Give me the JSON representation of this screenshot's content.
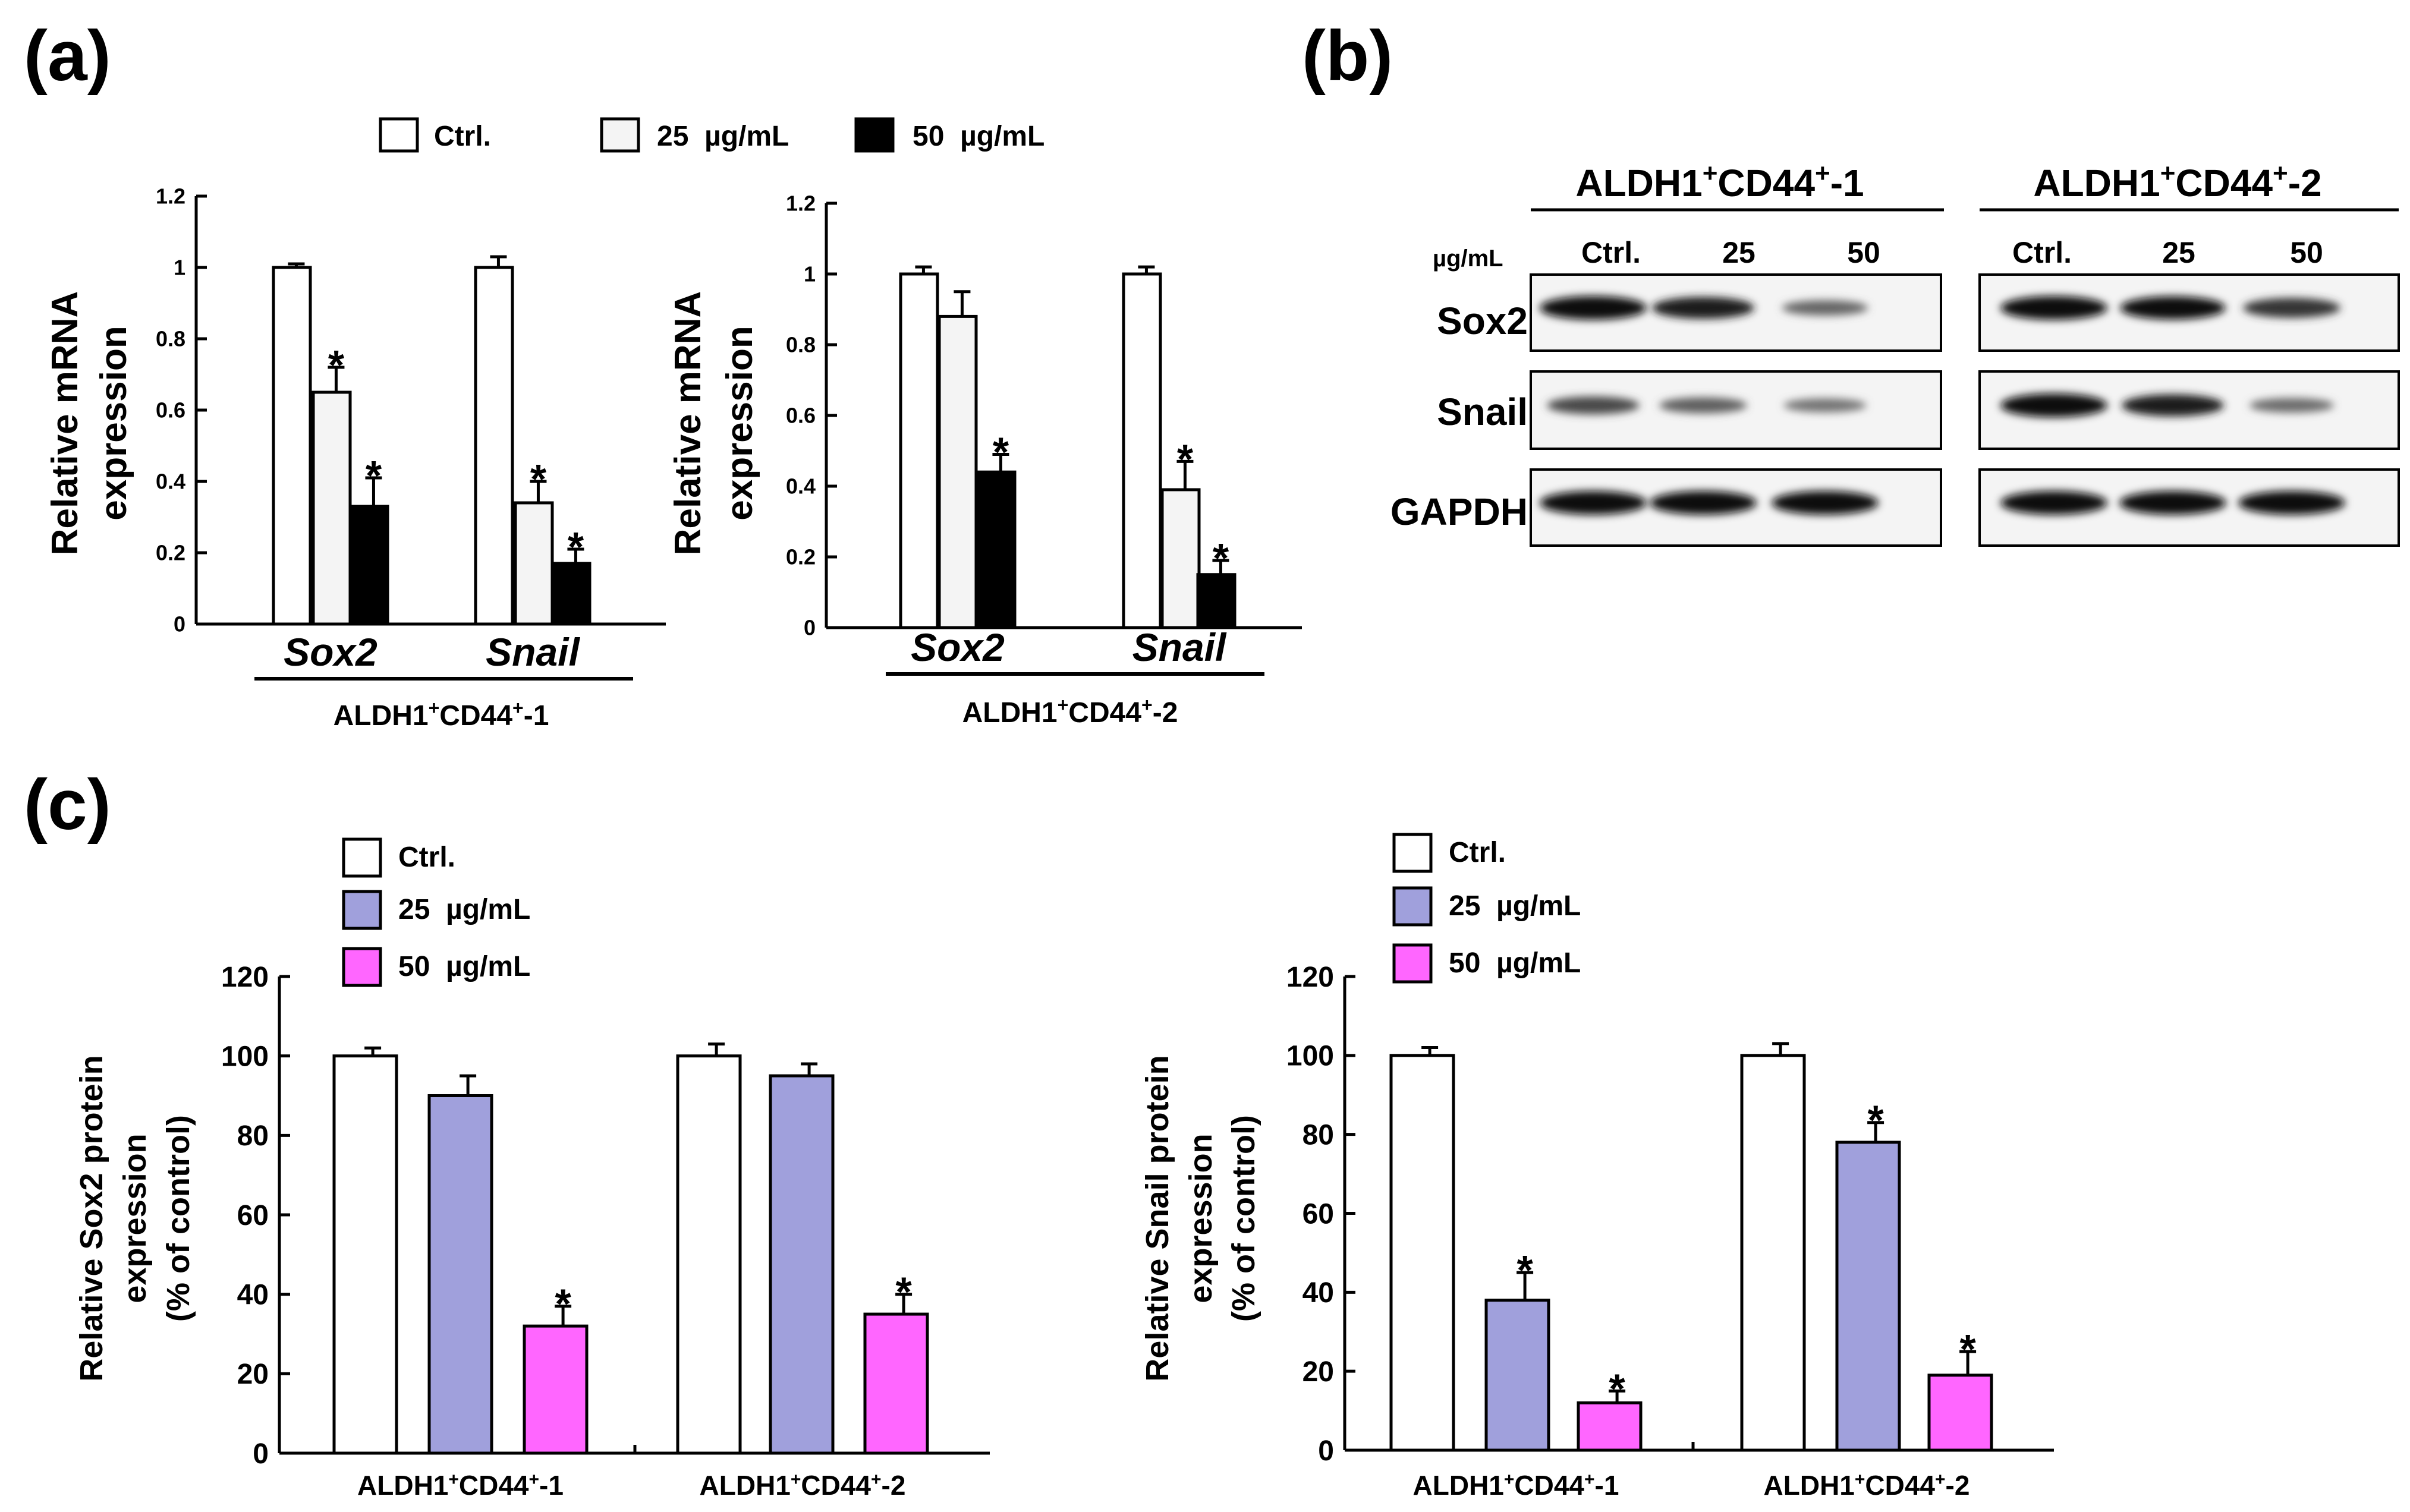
{
  "panel_labels": [
    "(a)",
    "(b)",
    "(c)"
  ],
  "colors": {
    "ctrl": "#ffffff",
    "mrna_25": "#f4f4f4",
    "mrna_50": "#000000",
    "protein_25": "#a0a0dc",
    "protein_50": "#ff66ff",
    "stroke": "#000000"
  },
  "panel_a": {
    "legend": [
      "Ctrl.",
      "25  µg/mL",
      "50  µg/mL"
    ],
    "ylabel_line1": "Relative mRNA",
    "ylabel_line2": "expression",
    "yticks": [
      "0",
      "0.2",
      "0.4",
      "0.6",
      "0.8",
      "1",
      "1.2"
    ]
  },
  "panel_b": {
    "groups": [
      "ALDH1+CD44+-1",
      "ALDH1+CD44+-2"
    ],
    "unit_label": "µg/mL",
    "lane_labels": [
      "Ctrl.",
      "25",
      "50"
    ],
    "row_labels": [
      "Sox2",
      "Snail",
      "GAPDH"
    ],
    "band_intensities": {
      "ALDH1+CD44+-1": {
        "Sox2": [
          1.0,
          0.85,
          0.35
        ],
        "Snail": [
          0.55,
          0.4,
          0.25
        ],
        "GAPDH": [
          1.0,
          1.0,
          1.0
        ]
      },
      "ALDH1+CD44+-2": {
        "Sox2": [
          1.0,
          0.95,
          0.7
        ],
        "Snail": [
          1.0,
          0.85,
          0.3
        ],
        "GAPDH": [
          1.0,
          1.0,
          1.0
        ]
      }
    }
  },
  "panel_c": {
    "legend": [
      "Ctrl.",
      "25  µg/mL",
      "50  µg/mL"
    ],
    "left_ylabel": [
      "Relative Sox2 protein",
      "expression",
      "(% of control)"
    ],
    "right_ylabel": [
      "Relative Snail protein",
      "expression",
      "(% of control)"
    ],
    "yticks": [
      "0",
      "20",
      "40",
      "60",
      "80",
      "100",
      "120"
    ]
  },
  "chart_data": [
    {
      "id": "a1",
      "type": "bar",
      "categories": [
        "Sox2",
        "Snail"
      ],
      "group_label": "ALDH1+CD44+-1",
      "ylabel": "Relative mRNA expression",
      "ylim": [
        0,
        1.2
      ],
      "series": [
        {
          "name": "Ctrl.",
          "values": [
            1.0,
            1.0
          ],
          "errors": [
            0.01,
            0.03
          ],
          "significant": [
            false,
            false
          ]
        },
        {
          "name": "25  µg/mL",
          "values": [
            0.65,
            0.34
          ],
          "errors": [
            0.07,
            0.06
          ],
          "significant": [
            true,
            true
          ]
        },
        {
          "name": "50  µg/mL",
          "values": [
            0.33,
            0.17
          ],
          "errors": [
            0.08,
            0.04
          ],
          "significant": [
            true,
            true
          ]
        }
      ]
    },
    {
      "id": "a2",
      "type": "bar",
      "categories": [
        "Sox2",
        "Snail"
      ],
      "group_label": "ALDH1+CD44+-2",
      "ylabel": "Relative mRNA expression",
      "ylim": [
        0,
        1.2
      ],
      "series": [
        {
          "name": "Ctrl.",
          "values": [
            1.0,
            1.0
          ],
          "errors": [
            0.02,
            0.02
          ],
          "significant": [
            false,
            false
          ]
        },
        {
          "name": "25  µg/mL",
          "values": [
            0.88,
            0.39
          ],
          "errors": [
            0.07,
            0.08
          ],
          "significant": [
            false,
            true
          ]
        },
        {
          "name": "50  µg/mL",
          "values": [
            0.44,
            0.15
          ],
          "errors": [
            0.05,
            0.04
          ],
          "significant": [
            true,
            true
          ]
        }
      ]
    },
    {
      "id": "c1",
      "type": "bar",
      "categories": [
        "ALDH1+CD44+-1",
        "ALDH1+CD44+-2"
      ],
      "ylabel": "Relative Sox2 protein expression (% of control)",
      "ylim": [
        0,
        120
      ],
      "series": [
        {
          "name": "Ctrl.",
          "values": [
            100,
            100
          ],
          "errors": [
            2,
            3
          ],
          "significant": [
            false,
            false
          ]
        },
        {
          "name": "25  µg/mL",
          "values": [
            90,
            95
          ],
          "errors": [
            5,
            3
          ],
          "significant": [
            false,
            false
          ]
        },
        {
          "name": "50  µg/mL",
          "values": [
            32,
            35
          ],
          "errors": [
            5,
            5
          ],
          "significant": [
            true,
            true
          ]
        }
      ]
    },
    {
      "id": "c2",
      "type": "bar",
      "categories": [
        "ALDH1+CD44+-1",
        "ALDH1+CD44+-2"
      ],
      "ylabel": "Relative Snail protein expression (% of control)",
      "ylim": [
        0,
        120
      ],
      "series": [
        {
          "name": "Ctrl.",
          "values": [
            100,
            100
          ],
          "errors": [
            2,
            3
          ],
          "significant": [
            false,
            false
          ]
        },
        {
          "name": "25  µg/mL",
          "values": [
            38,
            78
          ],
          "errors": [
            7,
            5
          ],
          "significant": [
            true,
            true
          ]
        },
        {
          "name": "50  µg/mL",
          "values": [
            12,
            19
          ],
          "errors": [
            3,
            6
          ],
          "significant": [
            true,
            true
          ]
        }
      ]
    }
  ]
}
